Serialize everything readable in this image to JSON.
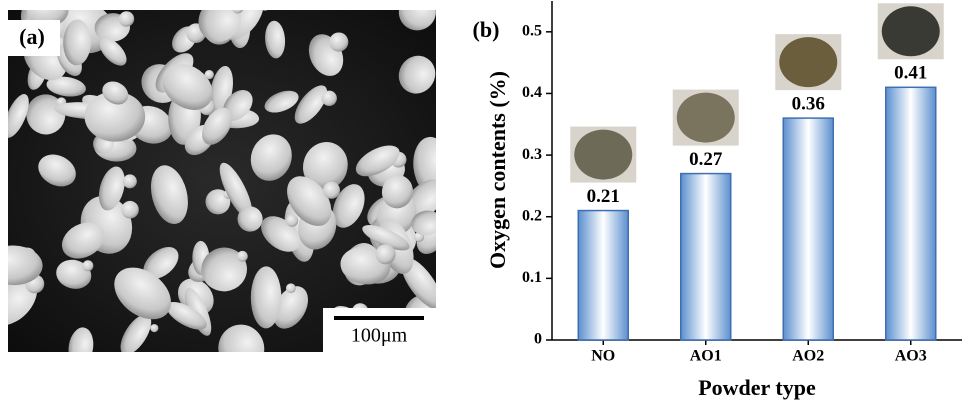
{
  "sem_image": {
    "label": "(a)",
    "scale_bar": "100μm"
  },
  "chart_data": {
    "type": "bar",
    "panel_label": "(b)",
    "x_label": "Powder type",
    "y_label": "Oxygen contents (%)",
    "categories": [
      "NO",
      "AO1",
      "AO2",
      "AO3"
    ],
    "values": [
      0.21,
      0.27,
      0.36,
      0.41
    ],
    "color": "#3f6fb0",
    "ylim": [
      0,
      0.55
    ],
    "yticks": [
      0,
      0.1,
      0.2,
      0.3,
      0.4,
      0.5
    ]
  }
}
